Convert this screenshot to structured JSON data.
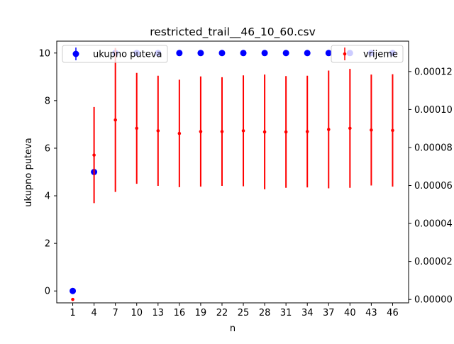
{
  "chart_data": {
    "type": "scatter",
    "title": "restricted_trail__46_10_60.csv",
    "xlabel": "n",
    "ylabel": "ukupno puteva",
    "y2label": "",
    "x_ticks": [
      1,
      4,
      7,
      10,
      13,
      16,
      19,
      22,
      25,
      28,
      31,
      34,
      37,
      40,
      43,
      46
    ],
    "ylim": [
      -0.5,
      10.5
    ],
    "y_ticks": [
      0,
      2,
      4,
      6,
      8,
      10
    ],
    "y2lim": [
      -1.8e-06,
      0.000136
    ],
    "y2_ticks": [
      0.0,
      2e-05,
      4e-05,
      6e-05,
      8e-05,
      0.0001,
      0.00012
    ],
    "y2_tick_labels": [
      "0.00000",
      "0.00002",
      "0.00004",
      "0.00006",
      "0.00008",
      "0.00010",
      "0.00012"
    ],
    "grid": false,
    "series": [
      {
        "name": "ukupno puteva",
        "axis": "left",
        "color": "#0000ff",
        "marker": "circle",
        "x": [
          1,
          4,
          7,
          10,
          13,
          16,
          19,
          22,
          25,
          28,
          31,
          34,
          37,
          40,
          43,
          46
        ],
        "y": [
          0,
          5,
          10,
          10,
          10,
          10,
          10,
          10,
          10,
          10,
          10,
          10,
          10,
          10,
          10,
          10
        ],
        "yerr": [
          0,
          0,
          0,
          0,
          0,
          0,
          0,
          0,
          0,
          0,
          0,
          0,
          0,
          0,
          0,
          0
        ]
      },
      {
        "name": "vrijeme",
        "axis": "right",
        "color": "#ff0000",
        "marker": "dot",
        "x": [
          1,
          4,
          7,
          10,
          13,
          16,
          19,
          22,
          25,
          28,
          31,
          34,
          37,
          40,
          43,
          46
        ],
        "y": [
          0.0,
          7.6e-05,
          9.45e-05,
          9.01e-05,
          8.88e-05,
          8.74e-05,
          8.84e-05,
          8.84e-05,
          8.88e-05,
          8.82e-05,
          8.82e-05,
          8.84e-05,
          8.95e-05,
          9.01e-05,
          8.92e-05,
          8.9e-05
        ],
        "yerr": [
          0.0,
          2.53e-05,
          3.79e-05,
          2.92e-05,
          2.9e-05,
          2.83e-05,
          2.9e-05,
          2.86e-05,
          2.92e-05,
          3.02e-05,
          2.94e-05,
          2.94e-05,
          3.1e-05,
          3.13e-05,
          2.92e-05,
          2.96e-05
        ]
      }
    ],
    "legends": [
      {
        "placement": "upper-left",
        "entries": [
          "ukupno puteva"
        ]
      },
      {
        "placement": "upper-right",
        "entries": [
          "vrijeme"
        ]
      }
    ]
  }
}
